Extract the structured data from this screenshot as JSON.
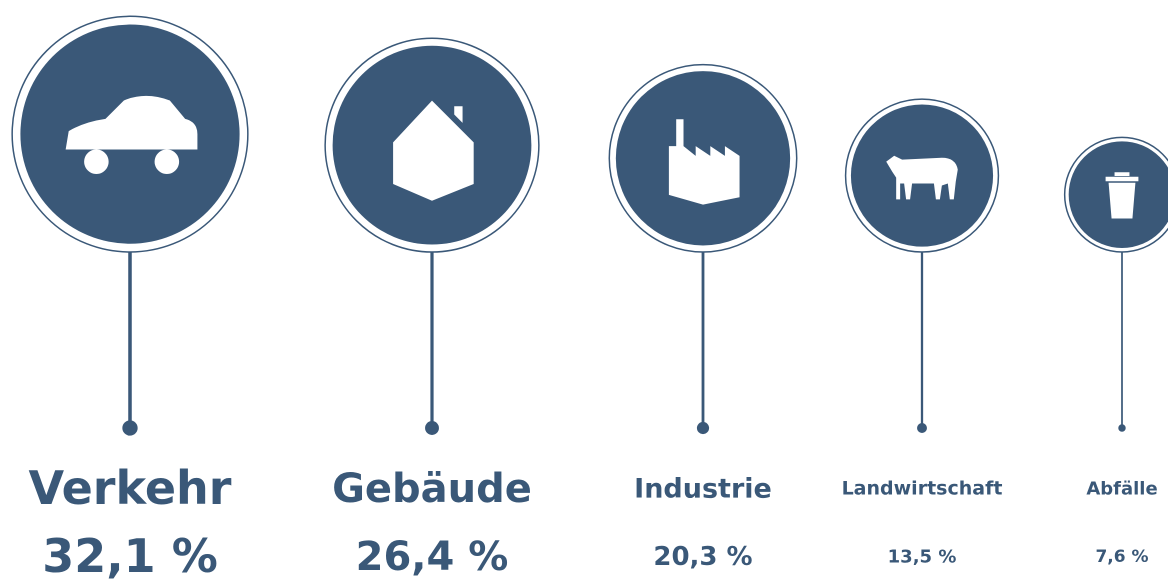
{
  "chart_data": {
    "type": "bubble",
    "categories": [
      "Verkehr",
      "Gebäude",
      "Industrie",
      "Landwirtschaft",
      "Abfälle"
    ],
    "values": [
      32.1,
      26.4,
      20.3,
      13.5,
      7.6
    ],
    "value_labels": [
      "32,1 %",
      "26,4 %",
      "20,3 %",
      "13,5 %",
      "7,6 %"
    ],
    "color": "#3a5878"
  }
}
